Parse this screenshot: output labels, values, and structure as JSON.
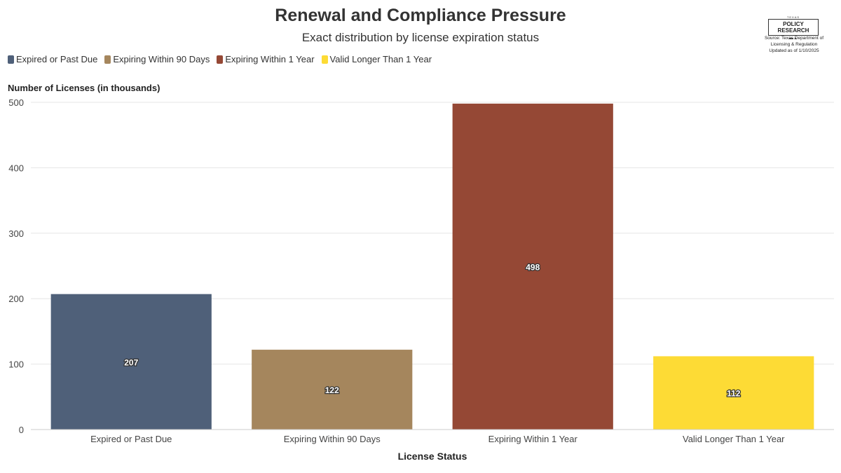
{
  "header": {
    "title": "Renewal and Compliance Pressure",
    "subtitle": "Exact distribution by license expiration status"
  },
  "branding": {
    "logo_small": "TEXAS",
    "logo_main": "POLICY RESEARCH",
    "source_line1": "Source: Texas Department of",
    "source_line2": "Licensing & Regulation",
    "source_line3": "Updated as of 1/10/2025"
  },
  "legend": [
    {
      "label": "Expired or Past Due",
      "color": "#4f6079"
    },
    {
      "label": "Expiring Within 90 Days",
      "color": "#a5865d"
    },
    {
      "label": "Expiring Within 1 Year",
      "color": "#954835"
    },
    {
      "label": "Valid Longer Than 1 Year",
      "color": "#fddb35"
    }
  ],
  "chart_data": {
    "type": "bar",
    "title": "Renewal and Compliance Pressure",
    "subtitle": "Exact distribution by license expiration status",
    "categories": [
      "Expired or Past Due",
      "Expiring Within 90 Days",
      "Expiring Within 1 Year",
      "Valid Longer Than 1 Year"
    ],
    "values": [
      207,
      122,
      498,
      112
    ],
    "colors": [
      "#4f6079",
      "#a5865d",
      "#954835",
      "#fddb35"
    ],
    "ylabel": "Number of Licenses (in thousands)",
    "xlabel": "License Status",
    "ylim": [
      0,
      500
    ],
    "yticks": [
      0,
      100,
      200,
      300,
      400,
      500
    ],
    "grid": true,
    "legend_position": "top-left"
  }
}
